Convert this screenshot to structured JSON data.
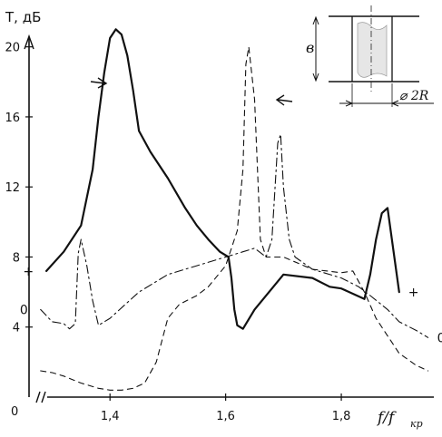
{
  "chart_data": {
    "type": "line",
    "ylabel": "T, дБ",
    "xlabel": "f/f",
    "xlabel_sub": "кр",
    "origin_label": "0",
    "xlim": [
      1.26,
      1.96
    ],
    "ylim": [
      0,
      20.5
    ],
    "xticks": [
      {
        "value": 1.4,
        "label": "1,4"
      },
      {
        "value": 1.6,
        "label": "1,6"
      },
      {
        "value": 1.8,
        "label": "1,8"
      }
    ],
    "yticks": [
      {
        "value": 4,
        "label": "4"
      },
      {
        "value": 8,
        "label": "8"
      },
      {
        "value": 12,
        "label": "12"
      },
      {
        "value": 16,
        "label": "16"
      },
      {
        "value": 20,
        "label": "20"
      }
    ],
    "series": [
      {
        "style": "solid",
        "end_label": "+",
        "x": [
          1.29,
          1.32,
          1.35,
          1.37,
          1.38,
          1.39,
          1.4,
          1.41,
          1.42,
          1.43,
          1.44,
          1.45,
          1.47,
          1.5,
          1.53,
          1.55,
          1.57,
          1.59,
          1.605,
          1.61,
          1.615,
          1.62,
          1.63,
          1.65,
          1.7,
          1.75,
          1.78,
          1.8,
          1.82,
          1.84,
          1.85,
          1.86,
          1.87,
          1.88,
          1.9
        ],
        "y": [
          7.2,
          8.3,
          9.8,
          13.0,
          16.0,
          18.5,
          20.5,
          21.0,
          20.7,
          19.5,
          17.5,
          15.2,
          14.0,
          12.5,
          10.8,
          9.8,
          9.0,
          8.3,
          8.0,
          6.8,
          5.0,
          4.1,
          3.9,
          5.0,
          7.0,
          6.8,
          6.3,
          6.2,
          5.9,
          5.6,
          7.0,
          9.0,
          10.5,
          10.8,
          6.0
        ]
      },
      {
        "style": "dash-dot",
        "end_label": "0",
        "x": [
          1.28,
          1.3,
          1.32,
          1.33,
          1.34,
          1.345,
          1.35,
          1.36,
          1.37,
          1.38,
          1.4,
          1.45,
          1.5,
          1.55,
          1.6,
          1.63,
          1.65,
          1.67,
          1.68,
          1.69,
          1.695,
          1.7,
          1.71,
          1.72,
          1.75,
          1.8,
          1.83,
          1.85,
          1.88,
          1.9,
          1.93,
          1.95
        ],
        "y": [
          5.0,
          4.3,
          4.2,
          3.9,
          4.2,
          8.2,
          9.0,
          7.5,
          5.5,
          4.1,
          4.5,
          6.0,
          7.0,
          7.5,
          8.0,
          8.3,
          8.5,
          8.0,
          9.0,
          14.5,
          15.0,
          12.0,
          9.0,
          8.0,
          7.3,
          6.8,
          6.3,
          5.8,
          5.0,
          4.3,
          3.8,
          3.4
        ]
      },
      {
        "style": "dashed",
        "x": [
          1.28,
          1.3,
          1.32,
          1.35,
          1.38,
          1.4,
          1.42,
          1.44,
          1.46,
          1.48,
          1.5,
          1.52,
          1.55,
          1.57,
          1.6,
          1.62,
          1.63,
          1.635,
          1.64,
          1.65,
          1.66,
          1.67,
          1.7,
          1.75,
          1.8,
          1.82,
          1.84,
          1.86,
          1.88,
          1.9,
          1.93,
          1.95
        ],
        "y": [
          1.5,
          1.4,
          1.2,
          0.8,
          0.5,
          0.4,
          0.4,
          0.5,
          0.8,
          2.0,
          4.5,
          5.3,
          5.8,
          6.3,
          7.5,
          9.5,
          13.0,
          19.0,
          20.0,
          17.0,
          9.0,
          8.0,
          8.0,
          7.3,
          7.1,
          7.2,
          6.0,
          4.5,
          3.5,
          2.5,
          1.8,
          1.5
        ]
      }
    ],
    "annotations": [
      {
        "text": "⌀ 2R"
      },
      {
        "text": "в"
      }
    ]
  }
}
